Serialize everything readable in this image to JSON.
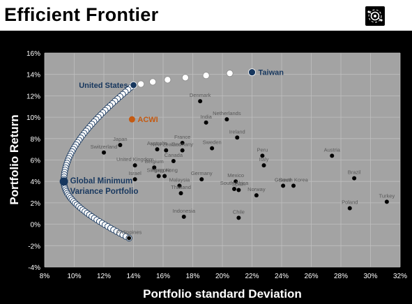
{
  "title": "Efficient Frontier",
  "logo_icon": "network-gear-icon",
  "colors": {
    "plot_bg": "#a3a3a3",
    "frontier_fill": "#ffffff",
    "frontier_stroke": "#17375e",
    "country_marker": "#000000",
    "highlight_marker": "#17375e",
    "acwi_marker": "#c55a11",
    "country_label": "#595959",
    "grid": "#bfbfbf"
  },
  "chart_data": {
    "type": "scatter",
    "xlabel": "Portfolio standard Deviation",
    "ylabel": "Portfolio Return",
    "xlim": [
      8,
      32
    ],
    "ylim": [
      -4,
      16
    ],
    "x_ticks": [
      8,
      10,
      12,
      14,
      16,
      18,
      20,
      22,
      24,
      26,
      28,
      30,
      32
    ],
    "y_ticks": [
      -4,
      -2,
      0,
      2,
      4,
      6,
      8,
      10,
      12,
      14,
      16
    ],
    "x_tick_suffix": "%",
    "y_tick_suffix": "%",
    "grid": true,
    "countries": [
      {
        "name": "Denmark",
        "x": 18.5,
        "y": 11.5
      },
      {
        "name": "India",
        "x": 18.9,
        "y": 9.5
      },
      {
        "name": "Netherlands",
        "x": 20.3,
        "y": 9.8
      },
      {
        "name": "Ireland",
        "x": 21.0,
        "y": 8.1
      },
      {
        "name": "Japan",
        "x": 13.1,
        "y": 7.4
      },
      {
        "name": "Switzerland",
        "x": 12.0,
        "y": 6.7
      },
      {
        "name": "United Kingdom",
        "x": 14.1,
        "y": 5.5
      },
      {
        "name": "Israel",
        "x": 14.1,
        "y": 4.2
      },
      {
        "name": "Australia",
        "x": 15.6,
        "y": 7.0
      },
      {
        "name": "New Zealand",
        "x": 16.2,
        "y": 6.9
      },
      {
        "name": "France",
        "x": 17.3,
        "y": 7.6
      },
      {
        "name": "Germany",
        "x": 17.3,
        "y": 6.9
      },
      {
        "name": "Belgium",
        "x": 15.4,
        "y": 5.3
      },
      {
        "name": "Canada",
        "x": 16.7,
        "y": 5.9
      },
      {
        "name": "Singapore",
        "x": 15.7,
        "y": 4.5
      },
      {
        "name": "Hong Kong",
        "x": 16.1,
        "y": 4.5
      },
      {
        "name": "Sweden",
        "x": 19.3,
        "y": 7.1
      },
      {
        "name": "Germany",
        "x": 18.6,
        "y": 4.2
      },
      {
        "name": "Malaysia",
        "x": 17.1,
        "y": 3.6
      },
      {
        "name": "Thailand",
        "x": 17.2,
        "y": 2.9
      },
      {
        "name": "Mexico",
        "x": 20.9,
        "y": 4.0
      },
      {
        "name": "South Africa",
        "x": 20.8,
        "y": 3.3
      },
      {
        "name": "Spain",
        "x": 21.1,
        "y": 3.2
      },
      {
        "name": "Norway",
        "x": 22.3,
        "y": 2.7
      },
      {
        "name": "Peru",
        "x": 22.7,
        "y": 6.4
      },
      {
        "name": "Italy",
        "x": 22.8,
        "y": 5.5
      },
      {
        "name": "Greece",
        "x": 24.1,
        "y": 3.6
      },
      {
        "name": "South Korea",
        "x": 24.8,
        "y": 3.6
      },
      {
        "name": "Austria",
        "x": 27.4,
        "y": 6.4
      },
      {
        "name": "Brazil",
        "x": 28.9,
        "y": 4.3
      },
      {
        "name": "Poland",
        "x": 28.6,
        "y": 1.5
      },
      {
        "name": "Turkey",
        "x": 31.1,
        "y": 2.1
      },
      {
        "name": "Indonesia",
        "x": 17.4,
        "y": 0.7
      },
      {
        "name": "Chile",
        "x": 21.1,
        "y": 0.6
      },
      {
        "name": "Philippines",
        "x": 13.7,
        "y": -1.3
      }
    ],
    "highlights": [
      {
        "name": "United States",
        "x": 14.0,
        "y": 13.0,
        "color": "#17375e"
      },
      {
        "name": "Taiwan",
        "x": 22.0,
        "y": 14.2,
        "color": "#17375e"
      },
      {
        "name": "ACWI",
        "x": 13.9,
        "y": 9.8,
        "color": "#c55a11"
      },
      {
        "name": "Global Minimum Variance Portfolio",
        "x": 9.3,
        "y": 4.0,
        "color": "#17375e"
      }
    ],
    "frontier": {
      "min_variance": {
        "x": 9.3,
        "y": 4.0
      },
      "top_point": {
        "x": 14.0,
        "y": 13.0
      },
      "bottom_point": {
        "x": 13.7,
        "y": -1.3
      },
      "upper_extension": [
        {
          "x": 14.5,
          "y": 13.1
        },
        {
          "x": 15.3,
          "y": 13.3
        },
        {
          "x": 16.3,
          "y": 13.5
        },
        {
          "x": 17.5,
          "y": 13.7
        },
        {
          "x": 18.9,
          "y": 13.9
        },
        {
          "x": 20.5,
          "y": 14.1
        }
      ]
    }
  }
}
